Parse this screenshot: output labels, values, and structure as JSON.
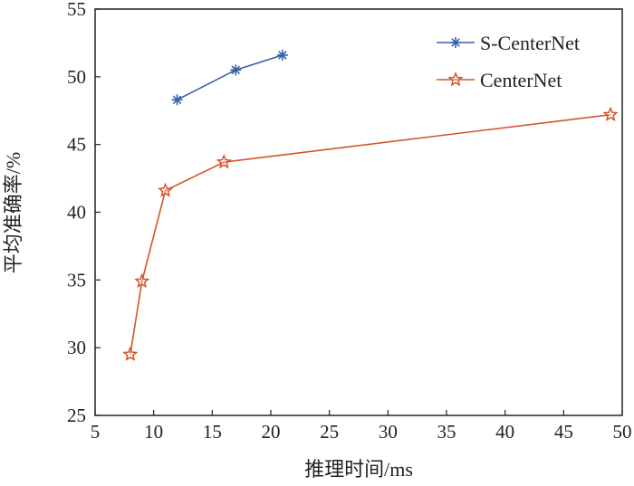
{
  "chart_data": {
    "type": "line",
    "xlabel": "推理时间/ms",
    "ylabel": "平均准确率/%",
    "xlim": [
      5,
      50
    ],
    "ylim": [
      25,
      55
    ],
    "xticks": [
      5,
      10,
      15,
      20,
      25,
      30,
      35,
      40,
      45,
      50
    ],
    "yticks": [
      25,
      30,
      35,
      40,
      45,
      50,
      55
    ],
    "grid": false,
    "legend": "top-right",
    "series": [
      {
        "name": "S-CenterNet",
        "color": "#3a5fa5",
        "marker": "asterisk",
        "x": [
          12,
          17,
          21
        ],
        "y": [
          48.3,
          50.5,
          51.6
        ]
      },
      {
        "name": "CenterNet",
        "color": "#d4532a",
        "marker": "star",
        "x": [
          8,
          9,
          11,
          16,
          49
        ],
        "y": [
          29.5,
          34.9,
          41.6,
          43.7,
          47.2
        ]
      }
    ]
  }
}
